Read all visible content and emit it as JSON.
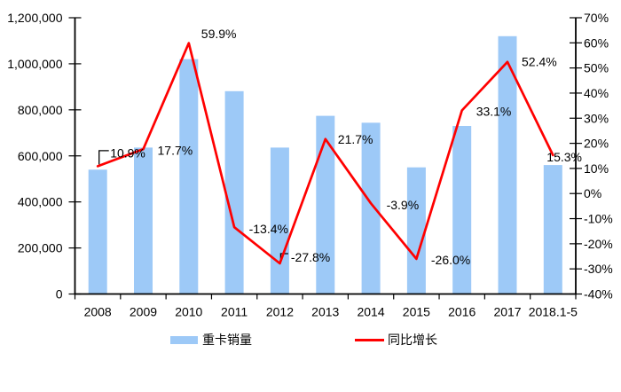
{
  "chart_data": {
    "type": "bar",
    "subtype": "bar-line-combo",
    "background": "#FFFFFF",
    "grid": false,
    "legend_position": "bottom",
    "categories": [
      "2008",
      "2009",
      "2010",
      "2011",
      "2012",
      "2013",
      "2014",
      "2015",
      "2016",
      "2017",
      "2018.1-5"
    ],
    "series": [
      {
        "name": "重卡销量",
        "chart_type": "bar",
        "axis": "left",
        "color": "#9DC9F7",
        "values": [
          540000,
          636000,
          1020000,
          881000,
          636000,
          774000,
          744000,
          550000,
          730000,
          1120000,
          560000
        ]
      },
      {
        "name": "同比增长",
        "chart_type": "line",
        "axis": "right",
        "color": "#FF0000",
        "values": [
          10.9,
          17.7,
          59.9,
          -13.4,
          -27.8,
          21.7,
          -3.9,
          -26.0,
          33.1,
          52.4,
          15.3
        ],
        "point_labels": [
          "10.9%",
          "17.7%",
          "59.9%",
          "-13.4%",
          "-27.8%",
          "21.7%",
          "-3.9%",
          "-26.0%",
          "33.1%",
          "52.4%",
          "15.3%"
        ]
      }
    ],
    "left_axis": {
      "min": 0,
      "max": 1200000,
      "tick_step": 200000,
      "tick_labels": [
        "0",
        "200,000",
        "400,000",
        "600,000",
        "800,000",
        "1,000,000",
        "1,200,000"
      ]
    },
    "right_axis": {
      "min": -40,
      "max": 70,
      "tick_step": 10,
      "tick_labels": [
        "-40%",
        "-30%",
        "-20%",
        "-10%",
        "0%",
        "10%",
        "20%",
        "30%",
        "40%",
        "50%",
        "60%",
        "70%"
      ]
    },
    "legend": [
      {
        "label": "重卡销量",
        "swatch": "bar",
        "color": "#9DC9F7"
      },
      {
        "label": "同比增长",
        "swatch": "line",
        "color": "#FF0000"
      }
    ]
  }
}
